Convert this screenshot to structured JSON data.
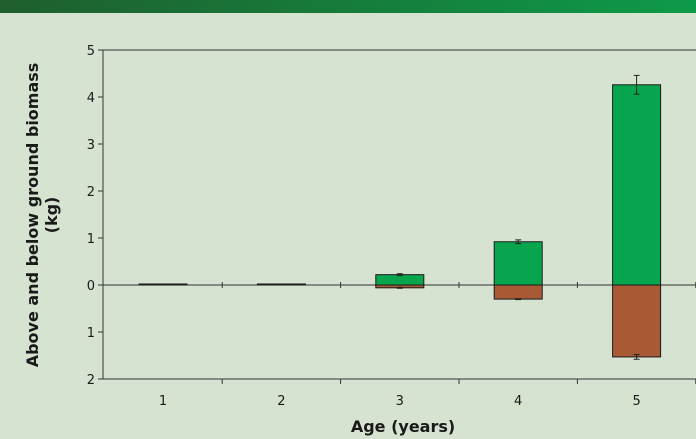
{
  "colors": {
    "background": "#d6e3d1",
    "header_band_start": "#1f5e2e",
    "header_band_end": "#0d9a48",
    "above_ground": "#07a64e",
    "below_ground": "#a85a35",
    "axis": "#333333"
  },
  "chart_data": {
    "type": "bar",
    "title": "",
    "xlabel": "Age (years)",
    "ylabel_line1": "Above and below ground biomass",
    "ylabel_line2": "(kg)",
    "categories": [
      "1",
      "2",
      "3",
      "4",
      "5"
    ],
    "ylim": [
      -2,
      5
    ],
    "yticks": [
      5,
      4,
      3,
      2,
      1,
      0,
      -1,
      -2
    ],
    "ytick_labels": [
      "5",
      "4",
      "3",
      "2",
      "1",
      "0",
      "1",
      "2"
    ],
    "grid": false,
    "series": [
      {
        "key": "above",
        "values": [
          0.01,
          0.02,
          0.22,
          0.92,
          4.26
        ],
        "errors": [
          0,
          0,
          0.02,
          0.04,
          0.2
        ]
      },
      {
        "key": "below",
        "values": [
          0,
          0,
          -0.06,
          -0.3,
          -1.53
        ],
        "errors": [
          0,
          0,
          0.01,
          0.01,
          0.05
        ]
      }
    ]
  }
}
